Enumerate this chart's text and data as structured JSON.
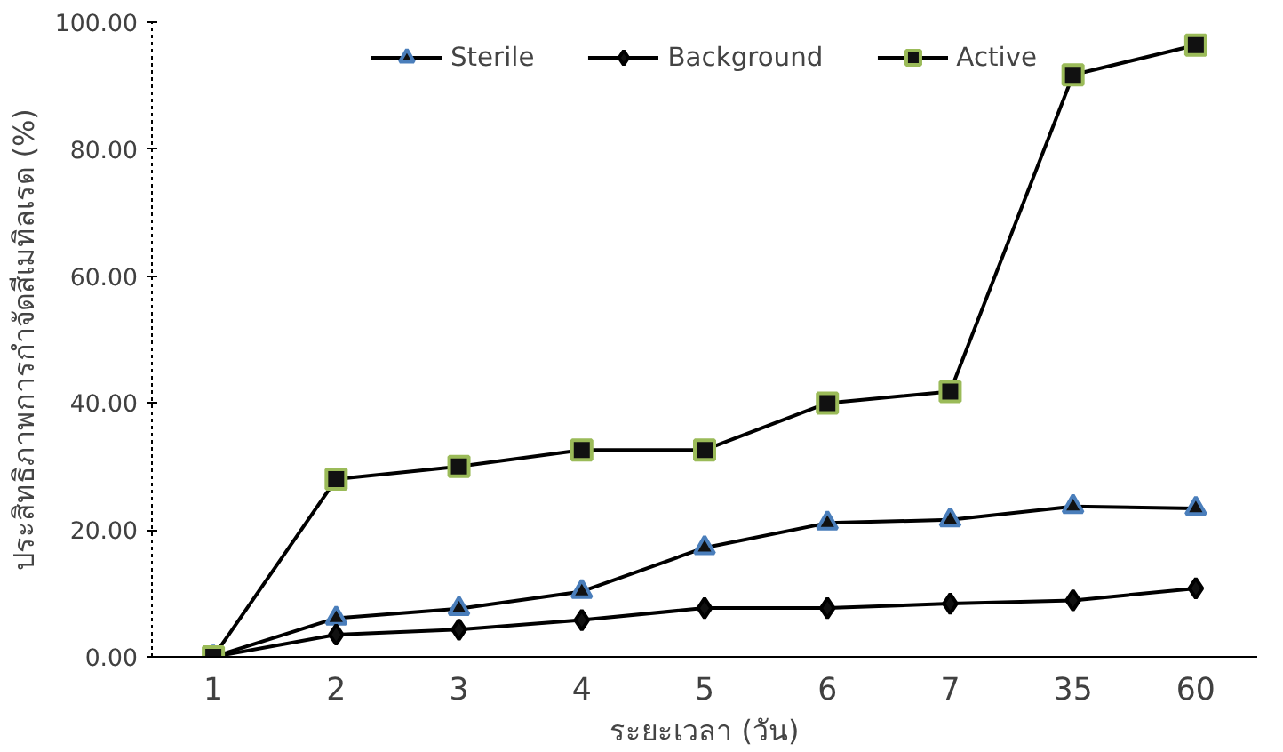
{
  "chart_data": {
    "type": "line",
    "xlabel": "ระยะเวลา (วัน)",
    "ylabel": "ประสิทธิภาพการกำจัดสีเมทิลเรด (%)",
    "categories": [
      "1",
      "2",
      "3",
      "4",
      "5",
      "6",
      "7",
      "35",
      "60"
    ],
    "ylim": [
      0,
      100
    ],
    "yticks": [
      {
        "value": 0,
        "label": "0.00"
      },
      {
        "value": 20,
        "label": "20.00"
      },
      {
        "value": 40,
        "label": "40.00"
      },
      {
        "value": 60,
        "label": "60.00"
      },
      {
        "value": 80,
        "label": "80.00"
      },
      {
        "value": 100,
        "label": "100.00"
      }
    ],
    "grid": false,
    "legend": "top",
    "line_style": "solid",
    "series": [
      {
        "name": "Sterile",
        "color": "#4a7ebb",
        "marker": "triangle",
        "values": [
          0,
          6.1,
          7.6,
          10.3,
          17.2,
          21.1,
          21.6,
          23.7,
          23.4
        ]
      },
      {
        "name": "Background",
        "color": "#000000",
        "marker": "diamond",
        "values": [
          0,
          3.5,
          4.3,
          5.8,
          7.7,
          7.7,
          8.4,
          8.9,
          10.8
        ]
      },
      {
        "name": "Active",
        "color": "#9bbb59",
        "marker": "square",
        "values": [
          0,
          28.0,
          30.0,
          32.6,
          32.6,
          40.0,
          41.8,
          91.7,
          96.4
        ]
      }
    ]
  }
}
